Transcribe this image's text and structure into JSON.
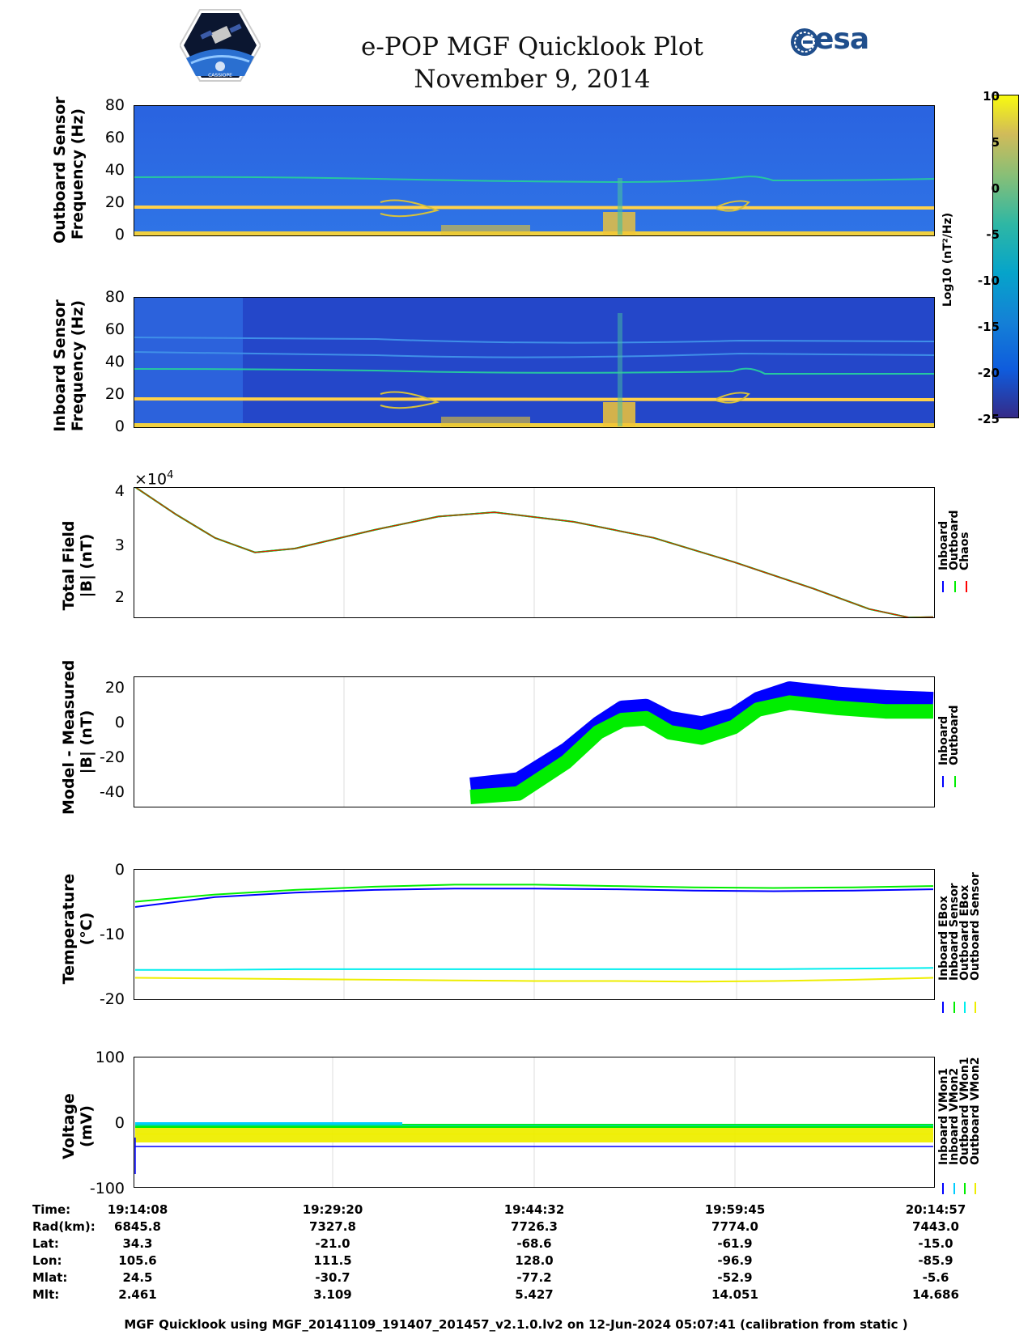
{
  "title": {
    "line1": "e-POP MGF Quicklook Plot",
    "line2": "November 9, 2014"
  },
  "logos": {
    "mission": "CASSIOPE",
    "agency": "esa"
  },
  "colorbar": {
    "label": "Log10 (nT²/Hz)",
    "ticks": [
      "10",
      "5",
      "0",
      "-5",
      "-10",
      "-15",
      "-20",
      "-25"
    ],
    "range": [
      -25,
      10
    ]
  },
  "chart_data": [
    {
      "type": "heatmap",
      "ylabel": "Outboard Sensor Frequency (Hz)",
      "ylabel_lines": [
        "Outboard Sensor",
        "Frequency (Hz)"
      ],
      "yticks": [
        "80",
        "60",
        "40",
        "20",
        "0"
      ],
      "ylim": [
        0,
        80
      ]
    },
    {
      "type": "heatmap",
      "ylabel": "Inboard Sensor Frequency (Hz)",
      "ylabel_lines": [
        "Inboard Sensor",
        "Frequency (Hz)"
      ],
      "yticks": [
        "80",
        "60",
        "40",
        "20",
        "0"
      ],
      "ylim": [
        0,
        80
      ]
    },
    {
      "type": "line",
      "ylabel_lines": [
        "Total Field",
        "|B| (nT)"
      ],
      "exponent": "×10",
      "exponent_power": "4",
      "yticks": [
        "4",
        "3",
        "2"
      ],
      "ylim": [
        1.65,
        4.1
      ],
      "x": [
        0,
        0.05,
        0.1,
        0.15,
        0.2,
        0.3,
        0.38,
        0.45,
        0.55,
        0.65,
        0.75,
        0.85,
        0.92,
        0.97,
        1.0
      ],
      "series": [
        {
          "name": "Inboard",
          "color": "#0000ff",
          "values": [
            4.1,
            3.6,
            3.15,
            2.88,
            2.95,
            3.3,
            3.55,
            3.63,
            3.45,
            3.15,
            2.7,
            2.2,
            1.82,
            1.66,
            1.67
          ]
        },
        {
          "name": "Outboard",
          "color": "#00ee00",
          "values": [
            4.1,
            3.6,
            3.15,
            2.88,
            2.95,
            3.3,
            3.55,
            3.63,
            3.45,
            3.15,
            2.7,
            2.2,
            1.82,
            1.66,
            1.67
          ]
        },
        {
          "name": "Chaos",
          "color": "#ff0000",
          "values": [
            4.1,
            3.6,
            3.15,
            2.88,
            2.95,
            3.3,
            3.55,
            3.63,
            3.45,
            3.15,
            2.7,
            2.2,
            1.82,
            1.66,
            1.67
          ]
        }
      ],
      "legend": [
        "Inboard",
        "Outboard",
        "Chaos"
      ]
    },
    {
      "type": "line",
      "ylabel_lines": [
        "Model - Measured",
        "|B| (nT)"
      ],
      "yticks": [
        "20",
        "0",
        "-20",
        "-40"
      ],
      "ylim": [
        -48,
        27
      ],
      "x": [
        0.42,
        0.48,
        0.54,
        0.58,
        0.61,
        0.64,
        0.67,
        0.71,
        0.75,
        0.78,
        0.82,
        0.88,
        0.94,
        1.0
      ],
      "series": [
        {
          "name": "Inboard",
          "color": "#0000ff",
          "values": [
            -35,
            -32,
            -15,
            0,
            9,
            10,
            3,
            0,
            5,
            14,
            20,
            17,
            15,
            14
          ]
        },
        {
          "name": "Outboard",
          "color": "#00ee00",
          "values": [
            -42,
            -40,
            -22,
            -5,
            2,
            3,
            -5,
            -8,
            -2,
            8,
            12,
            9,
            7,
            7
          ]
        }
      ],
      "legend": [
        "Inboard",
        "Outboard"
      ]
    },
    {
      "type": "line",
      "ylabel_lines": [
        "Temperature",
        "(°C)"
      ],
      "yticks": [
        "0",
        "-10",
        "-20"
      ],
      "ylim": [
        -20,
        0
      ],
      "x": [
        0,
        0.1,
        0.2,
        0.3,
        0.4,
        0.5,
        0.6,
        0.7,
        0.8,
        0.9,
        1.0
      ],
      "series": [
        {
          "name": "Inboard EBox",
          "color": "#0000ff",
          "values": [
            -5.8,
            -4.3,
            -3.6,
            -3.2,
            -3.0,
            -3.0,
            -3.1,
            -3.3,
            -3.4,
            -3.3,
            -3.1
          ]
        },
        {
          "name": "Inboard Sensor",
          "color": "#00ee00",
          "values": [
            -5.0,
            -3.9,
            -3.2,
            -2.7,
            -2.4,
            -2.4,
            -2.6,
            -2.8,
            -2.9,
            -2.8,
            -2.6
          ]
        },
        {
          "name": "Outboard EBox",
          "color": "#00eeee",
          "values": [
            -15.4,
            -15.4,
            -15.3,
            -15.3,
            -15.3,
            -15.3,
            -15.3,
            -15.3,
            -15.3,
            -15.2,
            -15.1
          ]
        },
        {
          "name": "Outboard Sensor",
          "color": "#eeee00",
          "values": [
            -16.6,
            -16.7,
            -16.8,
            -16.9,
            -17.0,
            -17.1,
            -17.1,
            -17.2,
            -17.1,
            -16.9,
            -16.6
          ]
        }
      ],
      "legend": [
        "Inboard EBox",
        "Inboard Sensor",
        "Outboard EBox",
        "Outboard Sensor"
      ]
    },
    {
      "type": "line",
      "ylabel_lines": [
        "Voltage",
        "(mV)"
      ],
      "yticks": [
        "100",
        "0",
        "-100"
      ],
      "ylim": [
        -100,
        100
      ],
      "x": [
        0,
        1
      ],
      "series": [
        {
          "name": "Inboard VMon1",
          "color": "#0000ff",
          "values": [
            -37,
            -37
          ]
        },
        {
          "name": "Inboard VMon2",
          "color": "#00ccff",
          "values": [
            -5,
            -5
          ]
        },
        {
          "name": "Outboard VMon1",
          "color": "#00ee00",
          "values": [
            -8,
            -8
          ]
        },
        {
          "name": "Outboard VMon2",
          "color": "#eeee00",
          "values": [
            -18,
            -18
          ]
        }
      ],
      "legend": [
        "Inboard VMon1",
        "Inboard VMon2",
        "Outboard VMon1",
        "Outboard VMon2"
      ]
    }
  ],
  "ephemeris": {
    "labels": [
      "Time:",
      "Rad(km):",
      "Lat:",
      "Lon:",
      "Mlat:",
      "Mlt:"
    ],
    "columns": [
      [
        "19:14:08",
        "6845.8",
        "34.3",
        "105.6",
        "24.5",
        "2.461"
      ],
      [
        "19:29:20",
        "7327.8",
        "-21.0",
        "111.5",
        "-30.7",
        "3.109"
      ],
      [
        "19:44:32",
        "7726.3",
        "-68.6",
        "128.0",
        "-77.2",
        "5.427"
      ],
      [
        "19:59:45",
        "7774.0",
        "-61.9",
        "-96.9",
        "-52.9",
        "14.051"
      ],
      [
        "20:14:57",
        "7443.0",
        "-15.0",
        "-85.9",
        "-5.6",
        "14.686"
      ]
    ]
  },
  "footer": "MGF Quicklook using MGF_20141109_191407_201457_v2.1.0.lv2 on 12-Jun-2024 05:07:41 (calibration from static )"
}
